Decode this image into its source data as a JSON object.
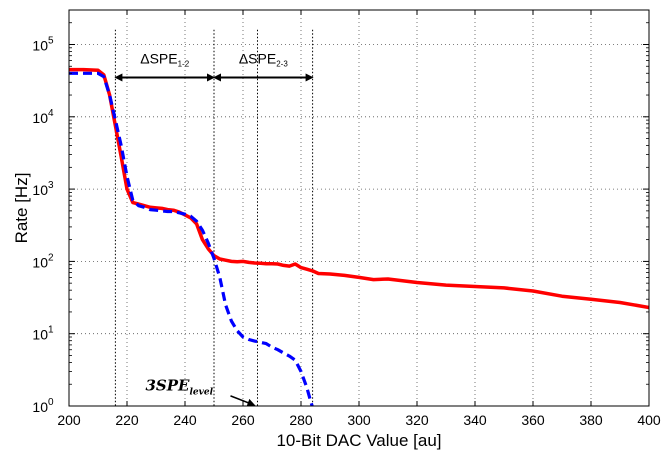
{
  "chart_data": {
    "type": "line",
    "xlabel": "10-Bit DAC Value [au]",
    "ylabel": "Rate [Hz]",
    "xlim": [
      200,
      400
    ],
    "ylim": [
      1,
      300000
    ],
    "yscale": "log",
    "grid": true,
    "x_ticks": [
      "200",
      "220",
      "240",
      "260",
      "280",
      "300",
      "320",
      "340",
      "360",
      "380",
      "400"
    ],
    "y_ticks": [
      {
        "base": "10",
        "exp": "0",
        "value": 1
      },
      {
        "base": "10",
        "exp": "1",
        "value": 10
      },
      {
        "base": "10",
        "exp": "2",
        "value": 100
      },
      {
        "base": "10",
        "exp": "3",
        "value": 1000
      },
      {
        "base": "10",
        "exp": "4",
        "value": 10000
      },
      {
        "base": "10",
        "exp": "5",
        "value": 100000
      }
    ],
    "series": [
      {
        "color": "#ff0000",
        "style": "solid",
        "x": [
          200,
          205,
          210,
          212,
          214,
          216,
          218,
          220,
          222,
          224,
          226,
          228,
          230,
          232,
          234,
          236,
          238,
          240,
          242,
          244,
          246,
          248,
          250,
          252,
          254,
          256,
          258,
          260,
          262,
          264,
          266,
          268,
          270,
          272,
          274,
          276,
          278,
          280,
          282,
          284,
          286,
          290,
          295,
          300,
          305,
          310,
          315,
          320,
          330,
          340,
          350,
          360,
          370,
          380,
          390,
          400
        ],
        "y": [
          45000,
          45000,
          44000,
          38000,
          20000,
          7500,
          2800,
          1000,
          650,
          620,
          590,
          560,
          550,
          540,
          520,
          510,
          480,
          440,
          400,
          330,
          200,
          150,
          120,
          108,
          104,
          100,
          99,
          100,
          97,
          95,
          94,
          93,
          93,
          92,
          88,
          86,
          92,
          82,
          78,
          74,
          68,
          67,
          64,
          60,
          56,
          57,
          54,
          51,
          47,
          45,
          43,
          39,
          33,
          30,
          27,
          23
        ]
      },
      {
        "color": "#0000ff",
        "style": "dashed",
        "x": [
          200,
          205,
          210,
          212,
          214,
          216,
          218,
          220,
          222,
          224,
          226,
          228,
          230,
          232,
          234,
          236,
          238,
          240,
          242,
          244,
          246,
          248,
          250,
          252,
          254,
          256,
          258,
          260,
          262,
          264,
          266,
          268,
          270,
          272,
          274,
          276,
          278,
          280,
          282,
          283,
          284
        ],
        "y": [
          40000,
          40000,
          40000,
          36000,
          20000,
          9000,
          4000,
          1500,
          700,
          590,
          560,
          520,
          510,
          500,
          490,
          490,
          470,
          450,
          420,
          360,
          270,
          180,
          110,
          60,
          25,
          15,
          11,
          9,
          8.3,
          7.9,
          7.6,
          7.3,
          6.5,
          6.0,
          5.4,
          4.9,
          4.3,
          3.0,
          1.8,
          1.3,
          0.95
        ]
      }
    ],
    "vlines": [
      216,
      250,
      265,
      284
    ],
    "annotations": [
      {
        "base": "ΔSPE",
        "sub": "1-2",
        "from": 216,
        "to": 250
      },
      {
        "base": "ΔSPE",
        "sub": "2-3",
        "from": 250,
        "to": 284
      }
    ],
    "level_label": {
      "base": "3SPE",
      "sub": "level",
      "x": 265
    }
  }
}
